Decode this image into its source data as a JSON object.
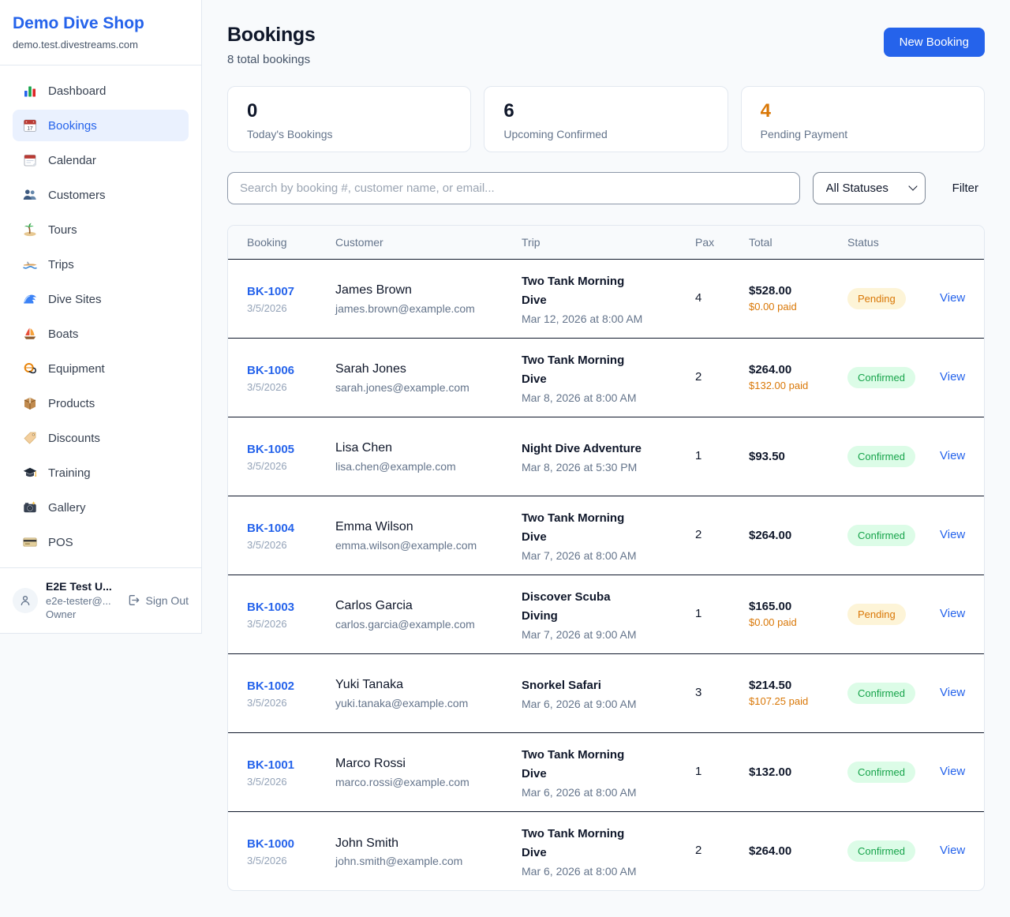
{
  "app": {
    "name": "Demo Dive Shop",
    "domain": "demo.test.divestreams.com"
  },
  "sidebar": {
    "items": [
      {
        "label": "Dashboard",
        "icon": "bar-chart",
        "active": false
      },
      {
        "label": "Bookings",
        "icon": "calendar-date",
        "active": true
      },
      {
        "label": "Calendar",
        "icon": "calendar-pad",
        "active": false
      },
      {
        "label": "Customers",
        "icon": "people",
        "active": false
      },
      {
        "label": "Tours",
        "icon": "island",
        "active": false
      },
      {
        "label": "Trips",
        "icon": "speedboat",
        "active": false
      },
      {
        "label": "Dive Sites",
        "icon": "wave",
        "active": false
      },
      {
        "label": "Boats",
        "icon": "sailboat",
        "active": false
      },
      {
        "label": "Equipment",
        "icon": "dive-mask",
        "active": false
      },
      {
        "label": "Products",
        "icon": "package",
        "active": false
      },
      {
        "label": "Discounts",
        "icon": "tag",
        "active": false
      },
      {
        "label": "Training",
        "icon": "grad-cap",
        "active": false
      },
      {
        "label": "Gallery",
        "icon": "camera",
        "active": false
      },
      {
        "label": "POS",
        "icon": "credit-card",
        "active": false
      }
    ],
    "user": {
      "name": "E2E Test U...",
      "email": "e2e-tester@...",
      "role": "Owner",
      "signout_label": "Sign Out"
    }
  },
  "header": {
    "title": "Bookings",
    "subtitle": "8 total bookings",
    "new_booking_label": "New Booking"
  },
  "stats": [
    {
      "value": "0",
      "label": "Today's Bookings",
      "color": "#0f172a"
    },
    {
      "value": "6",
      "label": "Upcoming Confirmed",
      "color": "#0f172a"
    },
    {
      "value": "4",
      "label": "Pending Payment",
      "color": "#d97706"
    }
  ],
  "filters": {
    "search_placeholder": "Search by booking #, customer name, or email...",
    "status_selected": "All Statuses",
    "filter_label": "Filter"
  },
  "table": {
    "columns": [
      "Booking",
      "Customer",
      "Trip",
      "Pax",
      "Total",
      "Status"
    ],
    "action_label": "View",
    "rows": [
      {
        "id": "BK-1007",
        "date": "3/5/2026",
        "customer": "James Brown",
        "email": "james.brown@example.com",
        "trip": "Two Tank Morning Dive",
        "datetime": "Mar 12, 2026 at 8:00 AM",
        "pax": "4",
        "total": "$528.00",
        "paid": "$0.00 paid",
        "status": "Pending"
      },
      {
        "id": "BK-1006",
        "date": "3/5/2026",
        "customer": "Sarah Jones",
        "email": "sarah.jones@example.com",
        "trip": "Two Tank Morning Dive",
        "datetime": "Mar 8, 2026 at 8:00 AM",
        "pax": "2",
        "total": "$264.00",
        "paid": "$132.00 paid",
        "status": "Confirmed"
      },
      {
        "id": "BK-1005",
        "date": "3/5/2026",
        "customer": "Lisa Chen",
        "email": "lisa.chen@example.com",
        "trip": "Night Dive Adventure",
        "datetime": "Mar 8, 2026 at 5:30 PM",
        "pax": "1",
        "total": "$93.50",
        "paid": null,
        "status": "Confirmed"
      },
      {
        "id": "BK-1004",
        "date": "3/5/2026",
        "customer": "Emma Wilson",
        "email": "emma.wilson@example.com",
        "trip": "Two Tank Morning Dive",
        "datetime": "Mar 7, 2026 at 8:00 AM",
        "pax": "2",
        "total": "$264.00",
        "paid": null,
        "status": "Confirmed"
      },
      {
        "id": "BK-1003",
        "date": "3/5/2026",
        "customer": "Carlos Garcia",
        "email": "carlos.garcia@example.com",
        "trip": "Discover Scuba Diving",
        "datetime": "Mar 7, 2026 at 9:00 AM",
        "pax": "1",
        "total": "$165.00",
        "paid": "$0.00 paid",
        "status": "Pending"
      },
      {
        "id": "BK-1002",
        "date": "3/5/2026",
        "customer": "Yuki Tanaka",
        "email": "yuki.tanaka@example.com",
        "trip": "Snorkel Safari",
        "datetime": "Mar 6, 2026 at 9:00 AM",
        "pax": "3",
        "total": "$214.50",
        "paid": "$107.25 paid",
        "status": "Confirmed"
      },
      {
        "id": "BK-1001",
        "date": "3/5/2026",
        "customer": "Marco Rossi",
        "email": "marco.rossi@example.com",
        "trip": "Two Tank Morning Dive",
        "datetime": "Mar 6, 2026 at 8:00 AM",
        "pax": "1",
        "total": "$132.00",
        "paid": null,
        "status": "Confirmed"
      },
      {
        "id": "BK-1000",
        "date": "3/5/2026",
        "customer": "John Smith",
        "email": "john.smith@example.com",
        "trip": "Two Tank Morning Dive",
        "datetime": "Mar 6, 2026 at 8:00 AM",
        "pax": "2",
        "total": "$264.00",
        "paid": null,
        "status": "Confirmed"
      }
    ]
  },
  "colors": {
    "accent": "#2563eb",
    "pending_text": "#d97706",
    "pending_bg": "#fdf4d7",
    "confirmed_text": "#16a34a",
    "confirmed_bg": "#dcfce7",
    "page_bg": "#f8fafc"
  }
}
